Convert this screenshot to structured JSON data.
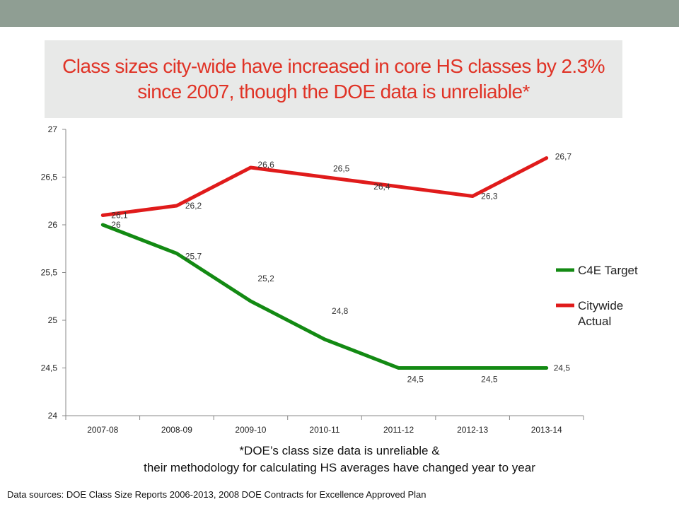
{
  "slide": {
    "title": "Class sizes city-wide have increased in core HS classes by 2.3% since 2007, though the DOE data is unreliable*",
    "footnote_line1": "*DOE’s class size data is unreliable &",
    "footnote_line2": "their methodology for calculating HS averages have changed year to year",
    "sources": "Data sources: DOE Class Size Reports 2006-2013, 2008 DOE Contracts for Excellence Approved Plan"
  },
  "chart_data": {
    "type": "line",
    "title": "",
    "xlabel": "",
    "ylabel": "",
    "categories": [
      "2007-08",
      "2008-09",
      "2009-10",
      "2010-11",
      "2011-12",
      "2012-13",
      "2013-14"
    ],
    "ylim": [
      24,
      27
    ],
    "yticks": [
      24,
      24.5,
      25,
      25.5,
      26,
      26.5,
      27
    ],
    "ytick_labels": [
      "24",
      "24,5",
      "25",
      "25,5",
      "26",
      "26,5",
      "27"
    ],
    "grid": false,
    "legend_position": "right",
    "series": [
      {
        "name": "C4E Target",
        "color": "#138a13",
        "values": [
          26,
          25.7,
          25.2,
          24.8,
          24.5,
          24.5,
          24.5
        ],
        "labels": [
          "26",
          "25,7",
          "25,2",
          "24,8",
          "24,5",
          "24,5",
          "24,5"
        ],
        "label_offsets": [
          [
            12,
            0
          ],
          [
            12,
            4
          ],
          [
            10,
            -32
          ],
          [
            10,
            -40
          ],
          [
            12,
            16
          ],
          [
            12,
            16
          ],
          [
            10,
            0
          ]
        ]
      },
      {
        "name": "Citywide Actual",
        "color": "#e01b1b",
        "values": [
          26.1,
          26.2,
          26.6,
          26.5,
          26.4,
          26.3,
          26.7
        ],
        "labels": [
          "26,1",
          "26,2",
          "26,6",
          "26,5",
          "26,4",
          "26,3",
          "26,7"
        ],
        "label_offsets": [
          [
            12,
            0
          ],
          [
            12,
            0
          ],
          [
            10,
            -4
          ],
          [
            12,
            -12
          ],
          [
            -12,
            0
          ],
          [
            12,
            0
          ],
          [
            12,
            -2
          ]
        ]
      }
    ]
  }
}
